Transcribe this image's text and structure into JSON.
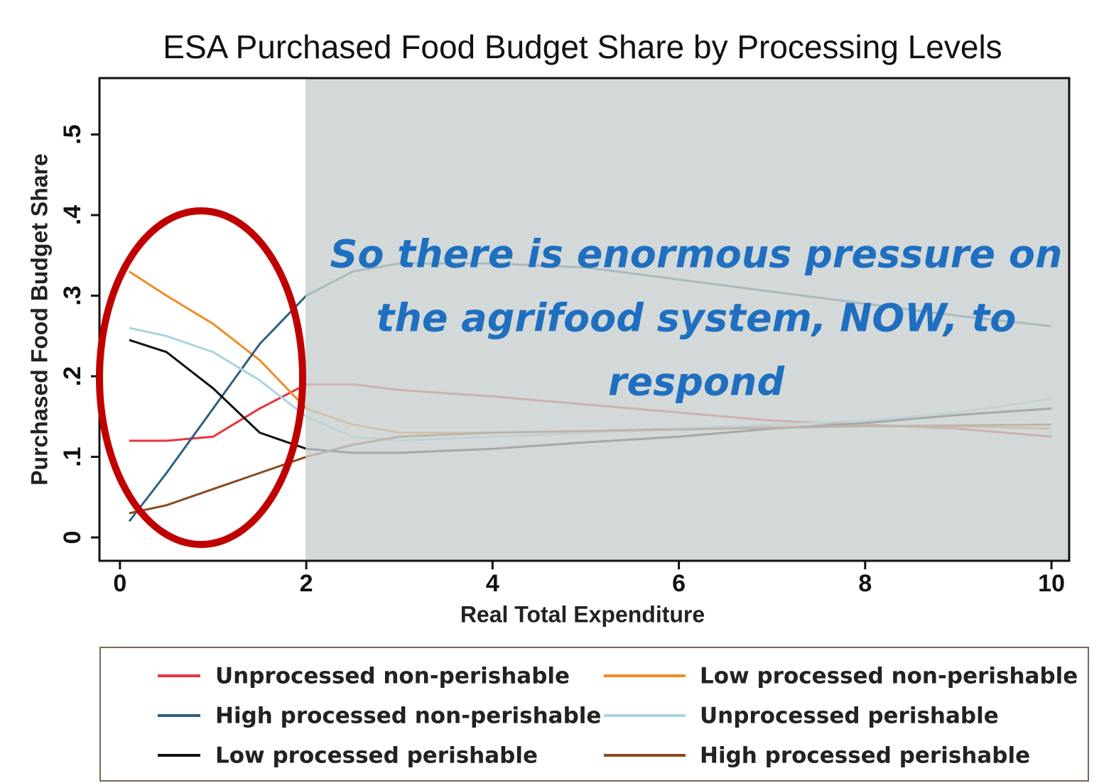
{
  "chart_data": {
    "type": "line",
    "title": "ESA Purchased Food Budget Share by Processing Levels",
    "x_label": "Real Total Expenditure",
    "y_label": "Purchased Food Budget Share",
    "annotation_lines": [
      "So there is enormous pressure on",
      "the agrifood system, NOW, to",
      "respond"
    ],
    "x": [
      0.1,
      0.5,
      1,
      1.5,
      2,
      2.5,
      3,
      4,
      5,
      6,
      7,
      8,
      9,
      10
    ],
    "series": [
      {
        "name": "Unprocessed non-perishable",
        "color": "#e8343c",
        "values": [
          0.12,
          0.12,
          0.125,
          0.16,
          0.19,
          0.19,
          0.183,
          0.175,
          0.165,
          0.155,
          0.145,
          0.14,
          0.135,
          0.125
        ]
      },
      {
        "name": "Low processed non-perishable",
        "color": "#f08a24",
        "values": [
          0.33,
          0.3,
          0.265,
          0.22,
          0.16,
          0.14,
          0.13,
          0.13,
          0.132,
          0.135,
          0.137,
          0.138,
          0.138,
          0.135
        ]
      },
      {
        "name": "High processed non-perishable",
        "color": "#2f5f80",
        "values": [
          0.02,
          0.08,
          0.16,
          0.24,
          0.3,
          0.33,
          0.34,
          0.34,
          0.335,
          0.32,
          0.305,
          0.29,
          0.275,
          0.262
        ]
      },
      {
        "name": "Unprocessed perishable",
        "color": "#a8d4e0",
        "values": [
          0.26,
          0.25,
          0.23,
          0.195,
          0.15,
          0.125,
          0.12,
          0.125,
          0.13,
          0.135,
          0.14,
          0.145,
          0.155,
          0.172
        ]
      },
      {
        "name": "Low processed perishable",
        "color": "#111111",
        "values": [
          0.245,
          0.23,
          0.185,
          0.13,
          0.11,
          0.105,
          0.105,
          0.11,
          0.118,
          0.125,
          0.135,
          0.142,
          0.152,
          0.16
        ]
      },
      {
        "name": "High processed perishable",
        "color": "#8a4a20",
        "values": [
          0.03,
          0.04,
          0.06,
          0.08,
          0.1,
          0.115,
          0.125,
          0.13,
          0.132,
          0.134,
          0.136,
          0.138,
          0.139,
          0.14
        ]
      }
    ],
    "xlim": [
      -0.22,
      10.19
    ],
    "ylim": [
      -0.029,
      0.57
    ],
    "xticks": [
      0,
      2,
      4,
      6,
      8,
      10
    ],
    "yticks": [
      0,
      {
        "value": 0.1,
        "label": ".1"
      },
      {
        "value": 0.2,
        "label": ".2"
      },
      {
        "value": 0.3,
        "label": ".3"
      },
      {
        "value": 0.4,
        "label": ".4"
      },
      {
        "value": 0.5,
        "label": ".5"
      }
    ]
  }
}
